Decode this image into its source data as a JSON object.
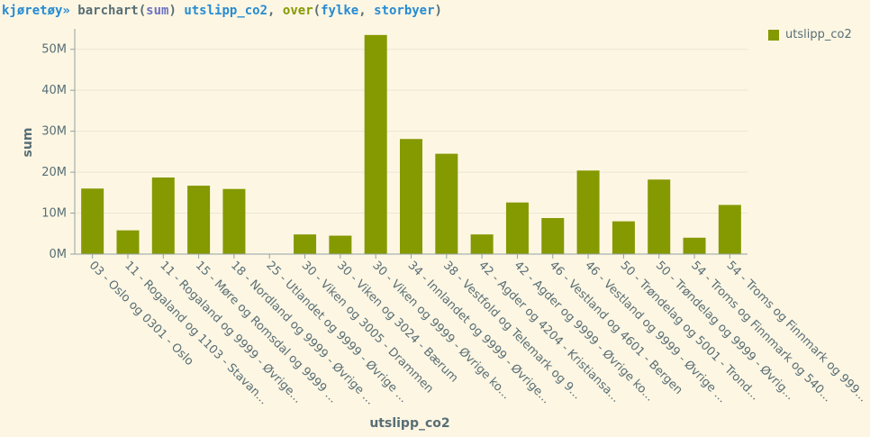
{
  "command": {
    "context": "kjøretøy»",
    "fn": "barchart(",
    "arg1": "sum",
    "close": ")",
    "column": "utslipp_co2",
    "sep": ",",
    "kw": "over",
    "open2": "(",
    "group1": "fylke",
    "comma2": ",",
    "group2": "storbyer",
    "close2": ")"
  },
  "colors": {
    "bar": "#859900",
    "grid": "#ece6d4",
    "axis": "#93a1a1",
    "background": "#fdf6e3"
  },
  "chart_data": {
    "type": "bar",
    "xlabel": "utslipp_co2",
    "ylabel": "sum",
    "ylim": [
      0,
      55000000
    ],
    "yticks": [
      0,
      10000000,
      20000000,
      30000000,
      40000000,
      50000000
    ],
    "ytick_labels": [
      "0M",
      "10M",
      "20M",
      "30M",
      "40M",
      "50M"
    ],
    "grid": true,
    "legend_position": "top-right",
    "categories": [
      "03 - Oslo og 0301 - Oslo",
      "11 - Rogaland og 1103 - Stavan...",
      "11 - Rogaland og 9999 - Øvrige...",
      "15 - Møre og Romsdal og 9999 ...",
      "18 - Nordland og 9999 - Øvrige ...",
      "25 - Utlandet og 9999 - Øvrige ...",
      "30 - Viken og 3005 - Drammen",
      "30 - Viken og 3024 - Bærum",
      "30 - Viken og 9999 - Øvrige ko...",
      "34 - Innlandet og 9999 - Øvrige...",
      "38 - Vestfold og Telemark og 9...",
      "42 - Agder og 4204 - Kristiansa...",
      "42 - Agder og 9999 - Øvrige ko...",
      "46 - Vestland og 4601 - Bergen",
      "46 - Vestland og 9999 - Øvrige ...",
      "50 - Trøndelag og 5001 - Trond...",
      "50 - Trøndelag og 9999 - Øvrig...",
      "54 - Troms og Finnmark og 540...",
      "54 - Troms og Finnmark og 999..."
    ],
    "series": [
      {
        "name": "utslipp_co2",
        "values": [
          16000000,
          5800000,
          18700000,
          16700000,
          15900000,
          100000,
          4800000,
          4500000,
          53500000,
          28100000,
          24500000,
          4800000,
          12600000,
          8800000,
          20400000,
          8000000,
          18200000,
          4000000,
          12000000
        ]
      }
    ]
  }
}
